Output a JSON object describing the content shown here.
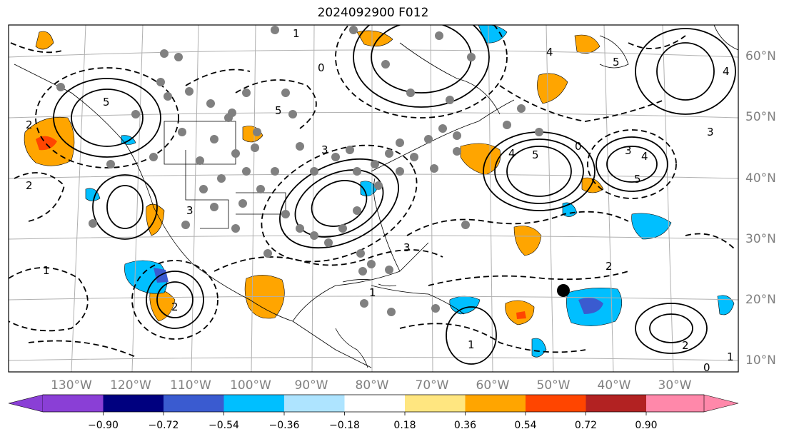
{
  "title": "2024092900 F012",
  "map": {
    "projection": "Lambert conformal",
    "lon_labels": [
      "130°W",
      "120°W",
      "110°W",
      "100°W",
      "90°W",
      "80°W",
      "70°W",
      "60°W",
      "50°W",
      "40°W",
      "30°W"
    ],
    "lat_labels": [
      "60°N",
      "50°N",
      "40°N",
      "30°N",
      "20°N",
      "10°N"
    ],
    "contour_labels": [
      "1",
      "2",
      "4",
      "5",
      "0",
      "3",
      "5",
      "4",
      "2",
      "3",
      "5",
      "4",
      "5",
      "1",
      "2",
      "3",
      "4",
      "3",
      "5",
      "0",
      "2",
      "1",
      "2",
      "3",
      "1",
      "1",
      "0"
    ],
    "colors": {
      "ocean_land": "#ffffff",
      "gridline": "#b0b0b0",
      "contour": "#000000",
      "marker": "#808080",
      "storm_marker": "#000000"
    }
  },
  "colorbar": {
    "tick_labels": [
      "−0.90",
      "−0.72",
      "−0.54",
      "−0.36",
      "−0.18",
      "0.18",
      "0.36",
      "0.54",
      "0.72",
      "0.90"
    ],
    "bins": [
      {
        "color": "#8a3fd6"
      },
      {
        "color": "#00007f"
      },
      {
        "color": "#3a5bd0"
      },
      {
        "color": "#00bfff"
      },
      {
        "color": "#aee4ff"
      },
      {
        "color": "#ffffff"
      },
      {
        "color": "#ffe680"
      },
      {
        "color": "#ffa500"
      },
      {
        "color": "#ff4500"
      },
      {
        "color": "#b22222"
      },
      {
        "color": "#ff88aa"
      }
    ]
  }
}
